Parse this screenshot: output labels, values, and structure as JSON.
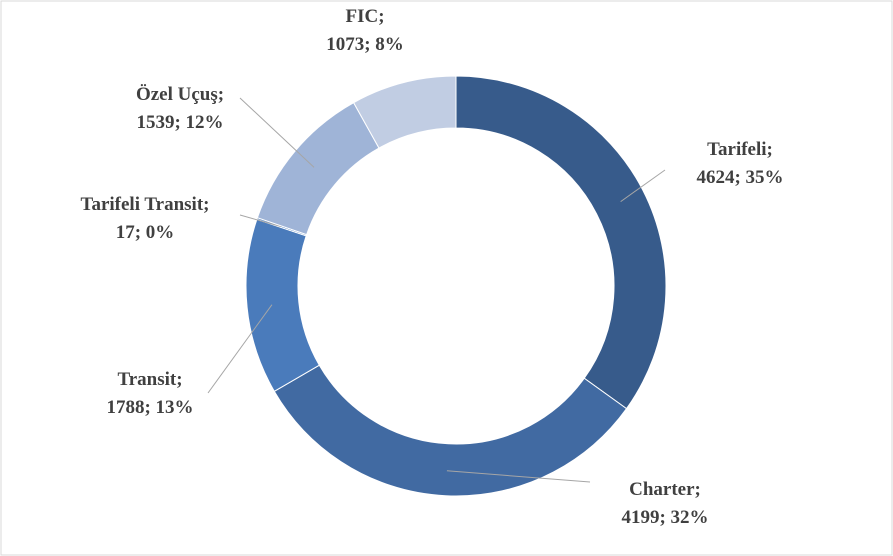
{
  "chart_data": {
    "type": "donut",
    "values": [
      4624,
      4199,
      1788,
      17,
      1539,
      1073
    ],
    "value_labels": [
      "Tarifeli; 4624; 35%",
      "Charter; 4199; 32%",
      "Transit; 1788; 13%",
      "Tarifeli Transit; 17; 0%",
      "Özel Uçuş; 1539; 12%",
      "FIC; 1073; 8%"
    ],
    "colors": [
      "#375b8b",
      "#416aa2",
      "#4a7bbb",
      "#5b88c2",
      "#9fb4d7",
      "#c1cde3"
    ]
  }
}
